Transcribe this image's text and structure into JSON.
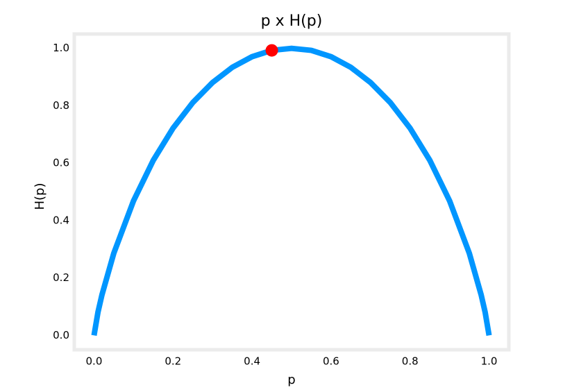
{
  "chart_data": {
    "type": "line",
    "title": "p x H(p)",
    "xlabel": "p",
    "ylabel": "H(p)",
    "x": [
      0,
      0.01,
      0.02,
      0.05,
      0.1,
      0.15,
      0.2,
      0.25,
      0.3,
      0.35,
      0.4,
      0.45,
      0.5,
      0.55,
      0.6,
      0.65,
      0.7,
      0.75,
      0.8,
      0.85,
      0.9,
      0.95,
      0.98,
      0.99,
      1
    ],
    "series": [
      {
        "color": "#0096ff",
        "values": [
          0,
          0.081,
          0.141,
          0.286,
          0.469,
          0.61,
          0.722,
          0.811,
          0.881,
          0.934,
          0.971,
          0.993,
          1.0,
          0.993,
          0.971,
          0.934,
          0.881,
          0.811,
          0.722,
          0.61,
          0.469,
          0.286,
          0.141,
          0.081,
          0
        ]
      }
    ],
    "point": {
      "x": 0.45,
      "y": 0.993,
      "color": "#ff0000"
    },
    "xlim": [
      -0.05,
      1.05
    ],
    "ylim": [
      -0.05,
      1.05
    ],
    "xticks": [
      {
        "value": 0,
        "label": "0.0"
      },
      0.2,
      0.4,
      0.6,
      0.8,
      {
        "value": 1,
        "label": "1.0"
      }
    ],
    "yticks": [
      {
        "value": 0,
        "label": "0.0"
      },
      0.2,
      0.4,
      0.6,
      0.8,
      {
        "value": 1,
        "label": "1.0"
      }
    ],
    "grid": false
  }
}
